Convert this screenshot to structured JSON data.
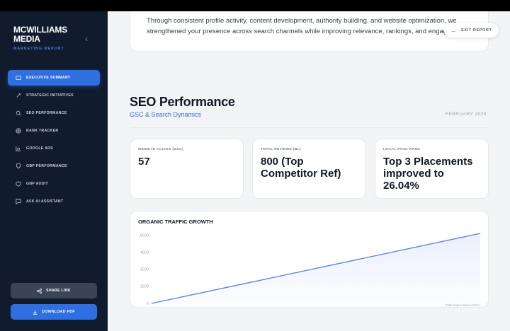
{
  "sidebar": {
    "brand": "MCWILLIAMS MEDIA",
    "subtitle": "MARKETING REPORT",
    "nav": [
      {
        "label": "EXECUTIVE SUMMARY",
        "active": true
      },
      {
        "label": "STRATEGIC INITIATIVES",
        "active": false
      },
      {
        "label": "SEO PERFORMANCE",
        "active": false
      },
      {
        "label": "RANK TRACKER",
        "active": false
      },
      {
        "label": "GOOGLE ADS",
        "active": false
      },
      {
        "label": "GBP PERFORMANCE",
        "active": false
      },
      {
        "label": "GBP AUDIT",
        "active": false
      },
      {
        "label": "ASK AI ASSISTANT",
        "active": false
      }
    ],
    "buttons": [
      "SHARE LINK",
      "DOWNLOAD PDF"
    ]
  },
  "intro": {
    "lines": [
      "Through consistent profile activity, content development, authority building, and website optimization, we",
      "strengthened your presence across search channels while improving relevance, rankings, and engagem"
    ]
  },
  "exit_button": "EXIT REPORT",
  "section": {
    "title": "SEO Performance",
    "subtitle": "GSC & Search Dynamics",
    "date": "FEBRUARY 2026"
  },
  "metrics": [
    {
      "label": "WEBSITE CLICKS (GSC)",
      "value": "57"
    },
    {
      "label": "TOTAL REVIEWS (BL)",
      "value": "800 (Top Competitor Ref)"
    },
    {
      "label": "LOCAL PACK RANK",
      "value": "Top 3 Placements improved to 26.04%"
    }
  ],
  "chart_data": {
    "type": "line",
    "title": "ORGANIC TRAFFIC GROWTH",
    "categories": [
      null,
      null
    ],
    "series": [
      {
        "name": "Total Impressions (GSC)",
        "color": "#4f7fe8",
        "values": [
          0,
          6200
        ]
      }
    ],
    "ylim": [
      0,
      6200
    ],
    "yticks": [
      0,
      1500,
      3000,
      4500,
      6000
    ]
  }
}
